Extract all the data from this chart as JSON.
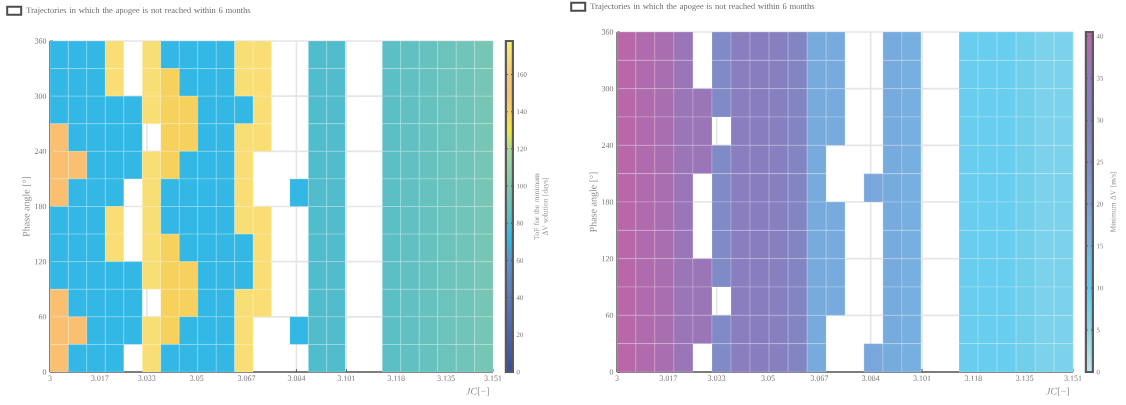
{
  "chart_data": [
    {
      "type": "heatmap",
      "xlabel": "*JC*[−]",
      "ylabel": "Phase angle [°]",
      "clabel": "ToF for the minimum ΔV solution [days]",
      "annotations": [
        "Trajectories in which the apogee is not reached within 6 months"
      ],
      "x": [
        3.0031,
        3.0094,
        3.0157,
        3.022,
        3.0283,
        3.0346,
        3.0409,
        3.0472,
        3.0535,
        3.0598,
        3.0661,
        3.0724,
        3.0786,
        3.0849,
        3.0912,
        3.0975,
        3.1038,
        3.1101,
        3.1164,
        3.1227,
        3.129,
        3.1353,
        3.1416,
        3.1479
      ],
      "y": [
        345,
        315,
        285,
        255,
        225,
        195,
        165,
        135,
        105,
        75,
        45,
        15
      ],
      "cells": [
        [
          72,
          72,
          72,
          170,
          null,
          170,
          72,
          72,
          72,
          72,
          170,
          170,
          null,
          null,
          80,
          80,
          null,
          null,
          85,
          87,
          89,
          91,
          93,
          96
        ],
        [
          72,
          72,
          72,
          170,
          null,
          170,
          140,
          72,
          72,
          72,
          170,
          170,
          null,
          null,
          80,
          80,
          null,
          null,
          85,
          87,
          89,
          91,
          93,
          96
        ],
        [
          72,
          72,
          72,
          72,
          72,
          170,
          140,
          140,
          72,
          72,
          72,
          170,
          null,
          null,
          80,
          80,
          null,
          null,
          85,
          87,
          89,
          91,
          93,
          96
        ],
        [
          150,
          72,
          72,
          72,
          72,
          null,
          140,
          140,
          72,
          72,
          170,
          170,
          null,
          null,
          80,
          80,
          null,
          null,
          85,
          87,
          89,
          91,
          93,
          96
        ],
        [
          150,
          150,
          72,
          72,
          72,
          170,
          140,
          72,
          72,
          72,
          170,
          null,
          null,
          null,
          80,
          80,
          null,
          null,
          85,
          87,
          89,
          91,
          93,
          96
        ],
        [
          150,
          72,
          72,
          72,
          null,
          170,
          72,
          72,
          72,
          72,
          170,
          null,
          null,
          72,
          80,
          80,
          null,
          null,
          85,
          87,
          89,
          91,
          93,
          96
        ],
        [
          72,
          72,
          72,
          170,
          null,
          170,
          72,
          72,
          72,
          72,
          170,
          170,
          null,
          null,
          80,
          80,
          null,
          null,
          85,
          87,
          89,
          91,
          93,
          96
        ],
        [
          72,
          72,
          72,
          170,
          null,
          170,
          140,
          72,
          72,
          72,
          72,
          170,
          null,
          null,
          80,
          80,
          null,
          null,
          85,
          87,
          89,
          91,
          93,
          96
        ],
        [
          72,
          72,
          72,
          72,
          72,
          170,
          140,
          140,
          72,
          72,
          72,
          170,
          null,
          null,
          80,
          80,
          null,
          null,
          85,
          87,
          89,
          91,
          93,
          96
        ],
        [
          150,
          72,
          72,
          72,
          72,
          null,
          140,
          140,
          72,
          72,
          170,
          170,
          null,
          null,
          80,
          80,
          null,
          null,
          85,
          87,
          89,
          91,
          93,
          96
        ],
        [
          150,
          150,
          72,
          72,
          72,
          170,
          140,
          72,
          72,
          72,
          170,
          null,
          null,
          72,
          80,
          80,
          null,
          null,
          85,
          87,
          89,
          91,
          93,
          96
        ],
        [
          150,
          72,
          72,
          72,
          null,
          170,
          72,
          72,
          72,
          72,
          170,
          null,
          null,
          null,
          80,
          80,
          null,
          null,
          85,
          87,
          89,
          91,
          93,
          96
        ]
      ],
      "clim": [
        0,
        178
      ],
      "cticks": [
        0,
        20,
        40,
        60,
        80,
        100,
        120,
        140,
        160
      ],
      "xlim": [
        3,
        3.151
      ],
      "xticks": [
        3,
        3.017,
        3.033,
        3.05,
        3.067,
        3.084,
        3.101,
        3.118,
        3.135,
        3.151
      ],
      "ylim": [
        0,
        360
      ],
      "yticks": [
        0,
        60,
        120,
        180,
        240,
        300,
        360
      ],
      "grid": true
    },
    {
      "type": "heatmap",
      "xlabel": "*JC*[−]",
      "ylabel": "Phase angle [°]",
      "clabel": "Minimum ΔV [m/s]",
      "annotations": [
        "Trajectories in which the apogee is not reached within 6 months"
      ],
      "x": [
        3.0031,
        3.0094,
        3.0157,
        3.022,
        3.0283,
        3.0346,
        3.0409,
        3.0472,
        3.0535,
        3.0598,
        3.0661,
        3.0724,
        3.0786,
        3.0849,
        3.0912,
        3.0975,
        3.1038,
        3.1101,
        3.1164,
        3.1227,
        3.129,
        3.1353,
        3.1416,
        3.1479
      ],
      "y": [
        345,
        315,
        285,
        255,
        225,
        195,
        165,
        135,
        105,
        75,
        45,
        15
      ],
      "cells": [
        [
          40,
          39,
          38,
          36,
          null,
          26,
          32,
          31,
          30,
          28,
          17,
          17,
          null,
          null,
          17,
          16,
          null,
          null,
          9,
          9,
          9,
          8,
          7,
          7
        ],
        [
          40,
          39,
          38,
          36,
          null,
          26,
          32,
          31,
          30,
          28,
          17,
          17,
          null,
          null,
          17,
          16,
          null,
          null,
          9,
          9,
          9,
          8,
          7,
          7
        ],
        [
          40,
          39,
          38,
          36,
          36,
          26,
          32,
          31,
          30,
          28,
          17,
          17,
          null,
          null,
          17,
          16,
          null,
          null,
          9,
          9,
          9,
          8,
          7,
          7
        ],
        [
          40,
          39,
          38,
          36,
          36,
          null,
          32,
          31,
          30,
          28,
          17,
          17,
          null,
          null,
          17,
          16,
          null,
          null,
          9,
          9,
          9,
          8,
          7,
          7
        ],
        [
          40,
          39,
          38,
          36,
          36,
          26,
          32,
          31,
          30,
          28,
          17,
          null,
          null,
          null,
          17,
          16,
          null,
          null,
          9,
          9,
          9,
          8,
          7,
          7
        ],
        [
          40,
          39,
          38,
          36,
          null,
          26,
          32,
          31,
          30,
          28,
          17,
          null,
          null,
          18,
          17,
          16,
          null,
          null,
          9,
          9,
          9,
          8,
          7,
          7
        ],
        [
          40,
          39,
          38,
          36,
          null,
          26,
          32,
          31,
          30,
          28,
          17,
          17,
          null,
          null,
          17,
          16,
          null,
          null,
          9,
          9,
          9,
          8,
          7,
          7
        ],
        [
          40,
          39,
          38,
          36,
          null,
          26,
          32,
          31,
          30,
          28,
          17,
          17,
          null,
          null,
          17,
          16,
          null,
          null,
          9,
          9,
          9,
          8,
          7,
          7
        ],
        [
          40,
          39,
          38,
          36,
          36,
          26,
          32,
          31,
          30,
          28,
          17,
          17,
          null,
          null,
          17,
          16,
          null,
          null,
          9,
          9,
          9,
          8,
          7,
          7
        ],
        [
          40,
          39,
          38,
          36,
          36,
          null,
          32,
          31,
          30,
          28,
          17,
          17,
          null,
          null,
          17,
          16,
          null,
          null,
          9,
          9,
          9,
          8,
          7,
          7
        ],
        [
          40,
          39,
          38,
          36,
          36,
          26,
          32,
          31,
          30,
          28,
          17,
          null,
          null,
          null,
          17,
          16,
          null,
          null,
          9,
          9,
          9,
          8,
          7,
          7
        ],
        [
          40,
          39,
          38,
          36,
          null,
          26,
          32,
          31,
          30,
          28,
          17,
          null,
          null,
          18,
          17,
          16,
          null,
          null,
          9,
          9,
          9,
          8,
          7,
          7
        ]
      ],
      "clim": [
        0,
        40.5
      ],
      "cticks": [
        0,
        5,
        10,
        15,
        20,
        25,
        30,
        35,
        40
      ],
      "xlim": [
        3,
        3.151
      ],
      "xticks": [
        3,
        3.017,
        3.033,
        3.05,
        3.067,
        3.084,
        3.101,
        3.118,
        3.135,
        3.151
      ],
      "ylim": [
        0,
        360
      ],
      "yticks": [
        0,
        60,
        120,
        180,
        240,
        300,
        360
      ],
      "grid": true
    }
  ]
}
